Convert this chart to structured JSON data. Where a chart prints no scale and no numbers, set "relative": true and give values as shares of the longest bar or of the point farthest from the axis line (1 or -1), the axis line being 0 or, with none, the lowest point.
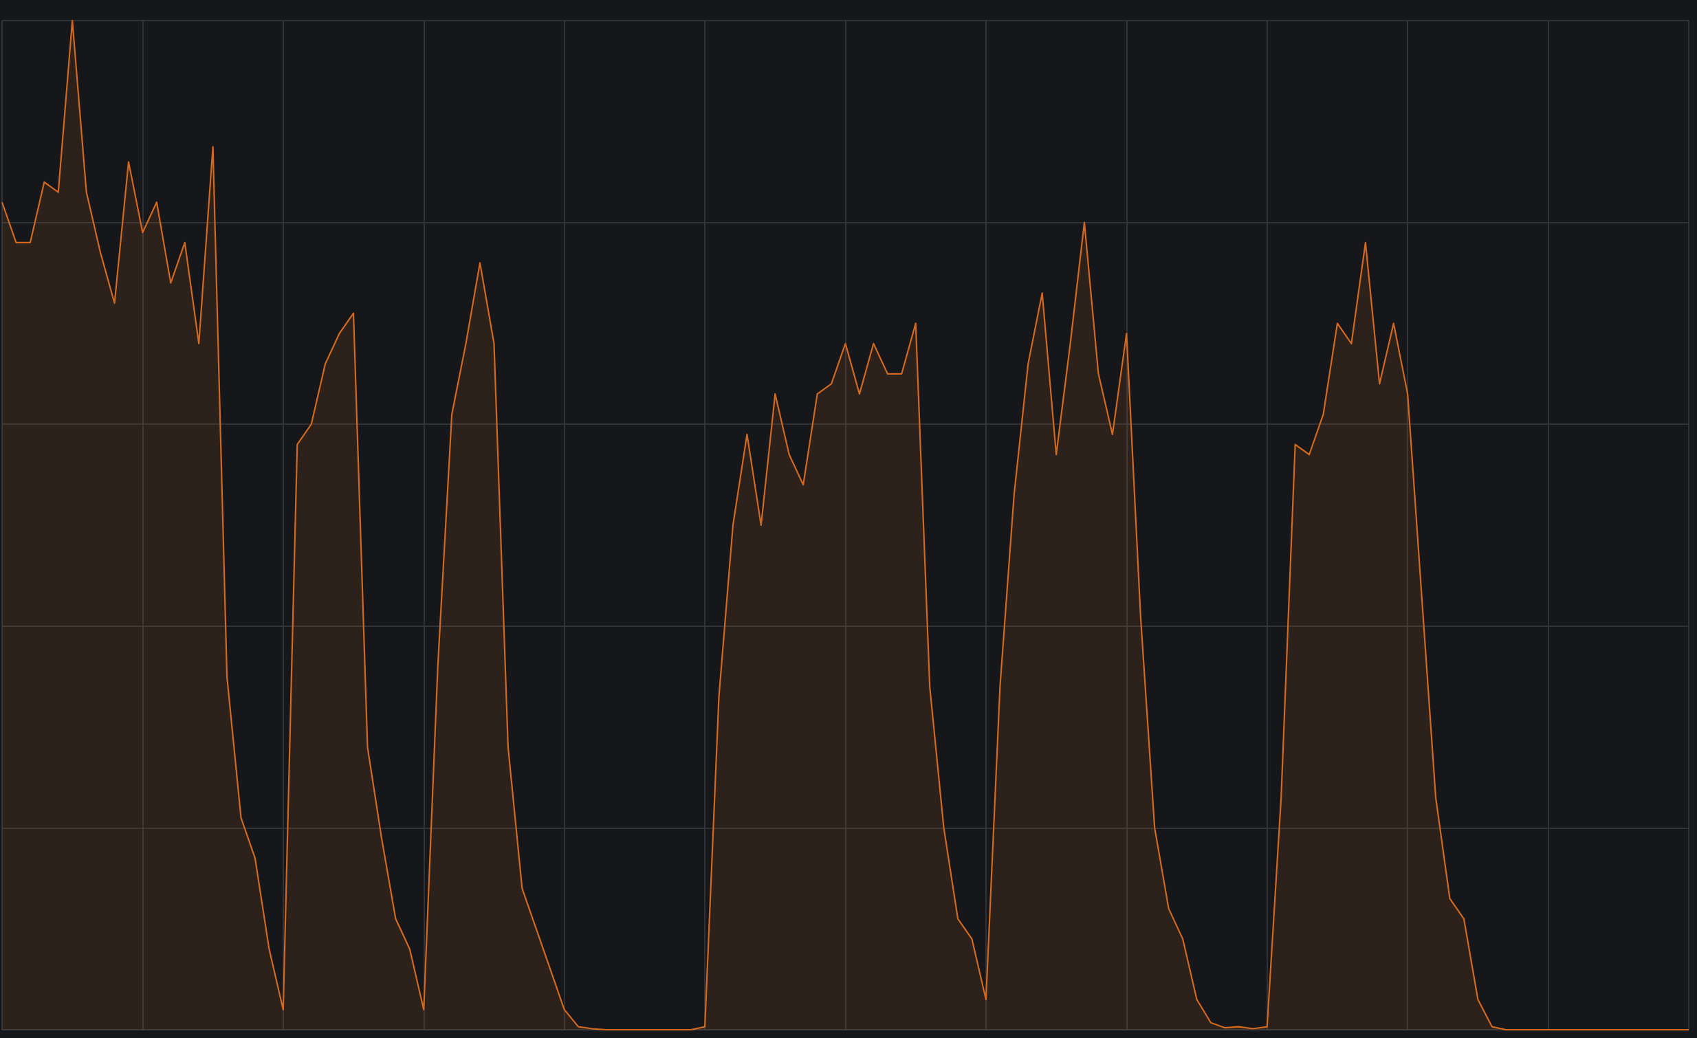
{
  "chart_data": {
    "type": "area",
    "relative": true,
    "grid": true,
    "marker": "none",
    "line_style": "solid",
    "categories": [
      null,
      null,
      null,
      null,
      null,
      null,
      null,
      null,
      null,
      null,
      null,
      null,
      null,
      null,
      null,
      null,
      null,
      null,
      null,
      null,
      null,
      null,
      null,
      null,
      null,
      null,
      null,
      null,
      null,
      null,
      null,
      null,
      null,
      null,
      null,
      null,
      null,
      null,
      null,
      null,
      null,
      null,
      null,
      null,
      null,
      null,
      null,
      null,
      null,
      null,
      null,
      null,
      null,
      null,
      null,
      null,
      null,
      null,
      null,
      null,
      null,
      null,
      null,
      null,
      null,
      null,
      null,
      null,
      null,
      null,
      null,
      null,
      null,
      null,
      null,
      null,
      null,
      null,
      null,
      null,
      null,
      null,
      null,
      null,
      null,
      null,
      null,
      null,
      null,
      null,
      null,
      null,
      null,
      null,
      null,
      null,
      null,
      null,
      null,
      null,
      null,
      null,
      null,
      null,
      null,
      null,
      null,
      null,
      null,
      null,
      null,
      null,
      null,
      null,
      null,
      null,
      null,
      null,
      null,
      null,
      null
    ],
    "series": [
      {
        "color": "#d2691e",
        "values": [
          0.82,
          0.78,
          0.78,
          0.84,
          0.83,
          1.0,
          0.83,
          0.77,
          0.72,
          0.86,
          0.79,
          0.82,
          0.74,
          0.78,
          0.68,
          0.875,
          0.35,
          0.21,
          0.17,
          0.08,
          0.02,
          0.58,
          0.6,
          0.66,
          0.69,
          0.71,
          0.28,
          0.19,
          0.11,
          0.08,
          0.02,
          0.36,
          0.61,
          0.68,
          0.76,
          0.68,
          0.28,
          0.14,
          0.1,
          0.06,
          0.02,
          0.003,
          0.001,
          0,
          0,
          0,
          0,
          0,
          0,
          0,
          0.003,
          0.33,
          0.5,
          0.59,
          0.5,
          0.63,
          0.57,
          0.54,
          0.63,
          0.64,
          0.68,
          0.63,
          0.68,
          0.65,
          0.65,
          0.7,
          0.34,
          0.2,
          0.11,
          0.09,
          0.03,
          0.34,
          0.53,
          0.66,
          0.73,
          0.57,
          0.68,
          0.8,
          0.65,
          0.59,
          0.69,
          0.41,
          0.2,
          0.12,
          0.09,
          0.03,
          0.007,
          0.002,
          0.003,
          0.001,
          0.003,
          0.23,
          0.58,
          0.57,
          0.61,
          0.7,
          0.68,
          0.78,
          0.64,
          0.7,
          0.63,
          0.43,
          0.23,
          0.13,
          0.11,
          0.03,
          0.003,
          0,
          0,
          0,
          0,
          0,
          0,
          0,
          0,
          0,
          0,
          0,
          0,
          0,
          0
        ]
      }
    ]
  }
}
